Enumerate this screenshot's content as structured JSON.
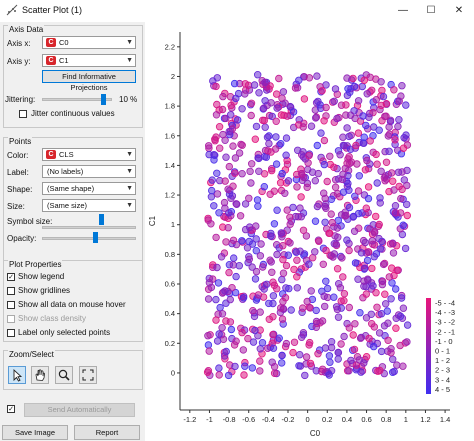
{
  "window": {
    "title": "Scatter Plot (1)",
    "minimize": "—",
    "maximize": "☐",
    "close": "✕",
    "icon": "scatter-plot-icon"
  },
  "axis_data": {
    "title": "Axis Data",
    "axis_x_label": "Axis x:",
    "axis_x_value": "C0",
    "axis_y_label": "Axis y:",
    "axis_y_value": "C1",
    "find_projections_label": "Find Informative Projections",
    "jittering_label": "Jittering:",
    "jittering_value": "10 %",
    "jittering_level": 0.9,
    "jitter_continuous_label": "Jitter continuous values",
    "jitter_continuous_checked": false
  },
  "points": {
    "title": "Points",
    "color_label": "Color:",
    "color_value": "CLS",
    "label_label": "Label:",
    "label_value": "(No labels)",
    "shape_label": "Shape:",
    "shape_value": "(Same shape)",
    "size_label": "Size:",
    "size_value": "(Same size)",
    "symbol_size_label": "Symbol size:",
    "symbol_size_level": 0.64,
    "opacity_label": "Opacity:",
    "opacity_level": 0.57
  },
  "plot_properties": {
    "title": "Plot Properties",
    "show_legend": {
      "label": "Show legend",
      "checked": true,
      "enabled": true
    },
    "show_gridlines": {
      "label": "Show gridlines",
      "checked": false,
      "enabled": true
    },
    "show_all_data": {
      "label": "Show all data on mouse hover",
      "checked": false,
      "enabled": true
    },
    "show_class_density": {
      "label": "Show class density",
      "checked": false,
      "enabled": false
    },
    "label_only_selected": {
      "label": "Label only selected points",
      "checked": false,
      "enabled": true
    }
  },
  "zoom_select": {
    "title": "Zoom/Select",
    "tools": [
      {
        "name": "select-tool",
        "icon": "pointer-icon",
        "active": true
      },
      {
        "name": "pan-tool",
        "icon": "hand-icon",
        "active": false
      },
      {
        "name": "zoom-tool",
        "icon": "magnifier-icon",
        "active": false
      },
      {
        "name": "reset-zoom-tool",
        "icon": "expand-icon",
        "active": false
      }
    ]
  },
  "bottom": {
    "auto_send_checked": true,
    "send_label": "Send Automatically",
    "save_image_label": "Save Image",
    "report_label": "Report"
  },
  "colors": {
    "accent": "#0078d7",
    "class_low": "#e8157a",
    "class_high": "#3f2ef0"
  },
  "chart_data": {
    "type": "scatter",
    "xlabel": "C0",
    "ylabel": "C1",
    "xlim": [
      -1.3,
      1.45
    ],
    "ylim": [
      -0.25,
      2.3
    ],
    "x_ticks": [
      "-1.2",
      "-1",
      "-0.8",
      "-0.6",
      "-0.4",
      "-0.2",
      "0",
      "0.2",
      "0.4",
      "0.6",
      "0.8",
      "1",
      "1.2",
      "1.4"
    ],
    "y_ticks": [
      "0",
      "0.2",
      "0.4",
      "0.6",
      "0.8",
      "1",
      "1.2",
      "1.4",
      "1.6",
      "1.8",
      "2",
      "2.2"
    ],
    "x_range": [
      -1.02,
      1.02
    ],
    "y_range": [
      -0.02,
      2.02
    ],
    "point_count": 900,
    "color_by": "CLS",
    "legend": {
      "position": "bottom-right",
      "entries": [
        "-5 - -4",
        "-4 - -3",
        "-3 - -2",
        "-2 - -1",
        "-1 - 0",
        "0 - 1",
        "1 - 2",
        "2 - 3",
        "3 - 4",
        "4 - 5"
      ]
    }
  }
}
